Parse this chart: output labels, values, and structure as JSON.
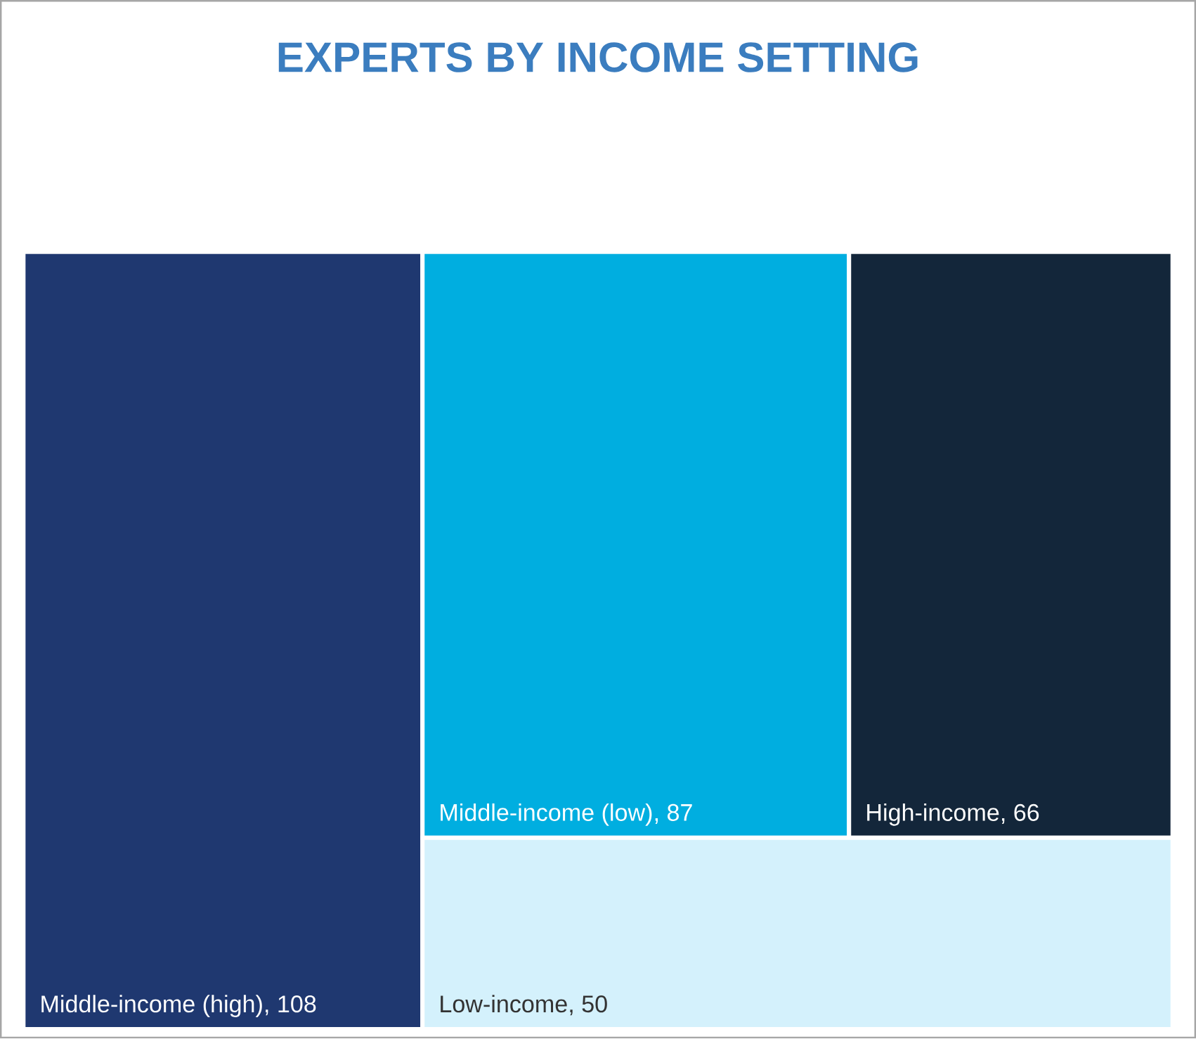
{
  "chart_data": {
    "type": "other",
    "title": "EXPERTS BY INCOME SETTING",
    "categories": [
      "Middle-income (high)",
      "Middle-income (low)",
      "High-income",
      "Low-income"
    ],
    "value_labels": [
      ", 108",
      ", 87",
      ", 66",
      ", 50"
    ],
    "values": [
      108,
      87,
      66,
      50
    ],
    "colors": [
      "#1f3870",
      "#00aee0",
      "#13263a",
      "#d4f1fc"
    ]
  }
}
